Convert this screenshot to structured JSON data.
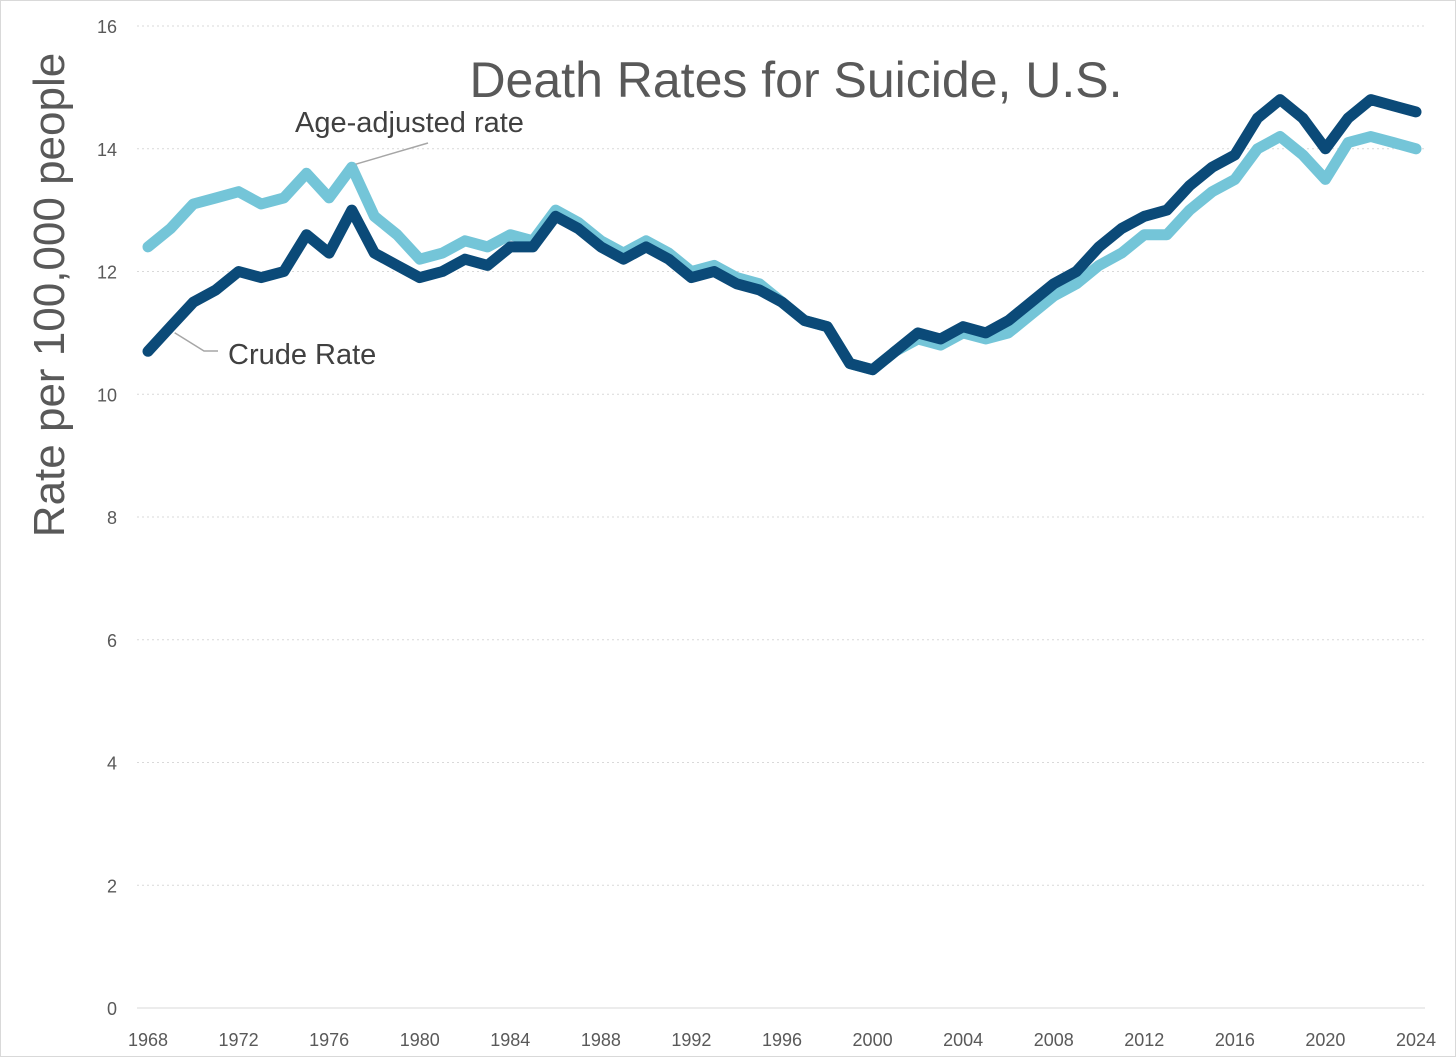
{
  "chart_data": {
    "type": "line",
    "title": "Death Rates for Suicide, U.S.",
    "xlabel": "",
    "ylabel": "Rate per 100,000 people",
    "ylim": [
      0,
      16
    ],
    "xlim": [
      1968,
      2024
    ],
    "y_ticks": [
      0,
      2,
      4,
      6,
      8,
      10,
      12,
      14,
      16
    ],
    "x_ticks": [
      1968,
      1972,
      1976,
      1980,
      1984,
      1988,
      1992,
      1996,
      2000,
      2004,
      2008,
      2012,
      2016,
      2020,
      2024
    ],
    "grid": "horizontal dotted",
    "legend": "none (direct labels)",
    "x": [
      1968,
      1969,
      1970,
      1971,
      1972,
      1973,
      1974,
      1975,
      1976,
      1977,
      1978,
      1979,
      1980,
      1981,
      1982,
      1983,
      1984,
      1985,
      1986,
      1987,
      1988,
      1989,
      1990,
      1991,
      1992,
      1993,
      1994,
      1995,
      1996,
      1997,
      1998,
      1999,
      2000,
      2001,
      2002,
      2003,
      2004,
      2005,
      2006,
      2007,
      2008,
      2009,
      2010,
      2011,
      2012,
      2013,
      2014,
      2015,
      2016,
      2017,
      2018,
      2019,
      2020,
      2021,
      2022,
      2023,
      2024
    ],
    "series": [
      {
        "name": "Crude Rate",
        "color": "#0b4a78",
        "values": [
          10.7,
          11.1,
          11.5,
          11.7,
          12.0,
          11.9,
          12.0,
          12.6,
          12.3,
          13.0,
          12.3,
          12.1,
          11.9,
          12.0,
          12.2,
          12.1,
          12.4,
          12.4,
          12.9,
          12.7,
          12.4,
          12.2,
          12.4,
          12.2,
          11.9,
          12.0,
          11.8,
          11.7,
          11.5,
          11.2,
          11.1,
          10.5,
          10.4,
          10.7,
          11.0,
          10.9,
          11.1,
          11.0,
          11.2,
          11.5,
          11.8,
          12.0,
          12.4,
          12.7,
          12.9,
          13.0,
          13.4,
          13.7,
          13.9,
          14.5,
          14.8,
          14.5,
          14.0,
          14.5,
          14.8,
          14.7,
          14.6
        ]
      },
      {
        "name": "Age-adjusted rate",
        "color": "#74c5d8",
        "values": [
          12.4,
          12.7,
          13.1,
          13.2,
          13.3,
          13.1,
          13.2,
          13.6,
          13.2,
          13.7,
          12.9,
          12.6,
          12.2,
          12.3,
          12.5,
          12.4,
          12.6,
          12.5,
          13.0,
          12.8,
          12.5,
          12.3,
          12.5,
          12.3,
          12.0,
          12.1,
          11.9,
          11.8,
          11.5,
          11.2,
          11.1,
          10.5,
          10.4,
          10.7,
          10.9,
          10.8,
          11.0,
          10.9,
          11.0,
          11.3,
          11.6,
          11.8,
          12.1,
          12.3,
          12.6,
          12.6,
          13.0,
          13.3,
          13.5,
          14.0,
          14.2,
          13.9,
          13.5,
          14.1,
          14.2,
          14.1,
          14.0
        ]
      }
    ],
    "annotations": [
      {
        "text": "Age-adjusted rate",
        "series": "Age-adjusted rate"
      },
      {
        "text": "Crude Rate",
        "series": "Crude Rate"
      }
    ]
  }
}
